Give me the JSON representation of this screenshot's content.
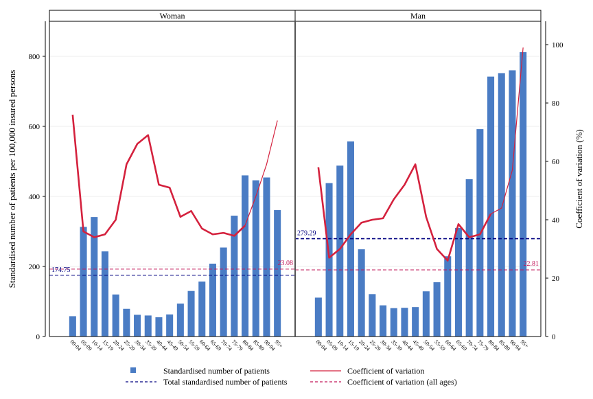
{
  "chart_data": {
    "type": "bar",
    "ylabel": "Standardised number of patients per 100,000 insured persons",
    "y2label": "Coefficient of variation (%)",
    "ylim": [
      0,
      900
    ],
    "yticks": [
      0,
      200,
      400,
      600,
      800
    ],
    "y2lim": [
      0,
      108
    ],
    "y2ticks": [
      0,
      20,
      40,
      60,
      80,
      100
    ],
    "categories": [
      "00-04",
      "05-09",
      "10-14",
      "15-19",
      "20-24",
      "25-29",
      "30-34",
      "35-39",
      "40-44",
      "45-49",
      "50-54",
      "55-59",
      "60-64",
      "65-69",
      "70-74",
      "75-79",
      "80-84",
      "85-89",
      "90-94",
      "95+"
    ],
    "legend": {
      "bars": "Standardised number of patients",
      "total": "Total standardised number of patients",
      "cv": "Coefficient of variation",
      "cv_all": "Coefficient of variation (all ages)"
    },
    "colors": {
      "bar": "#4a7cc4",
      "cv": "#d4213d",
      "total": "#000080",
      "cv_all": "#c2185b"
    },
    "panels": [
      {
        "title": "Woman",
        "bars": [
          58,
          313,
          341,
          243,
          120,
          79,
          62,
          60,
          55,
          63,
          94,
          130,
          157,
          208,
          254,
          345,
          460,
          446,
          454,
          361
        ],
        "cv": [
          76,
          36,
          34,
          35,
          40,
          59,
          66,
          69,
          52,
          51,
          41,
          43,
          37,
          35,
          35.5,
          34.5,
          38,
          48,
          59,
          74
        ],
        "total": 174.75,
        "total_label": "174.75",
        "cv_all": 23.08,
        "cv_all_label": "23.08"
      },
      {
        "title": "Man",
        "bars": [
          111,
          438,
          488,
          557,
          249,
          121,
          89,
          81,
          82,
          84,
          129,
          155,
          229,
          310,
          449,
          592,
          742,
          752,
          760,
          812
        ],
        "cv": [
          58,
          27,
          30,
          35,
          39,
          40,
          40.5,
          47,
          52,
          59,
          41,
          30,
          26,
          38.5,
          34,
          35,
          42,
          44,
          57,
          99
        ],
        "total": 279.29,
        "total_label": "279.29",
        "cv_all": 22.81,
        "cv_all_label": "22.81"
      }
    ]
  }
}
